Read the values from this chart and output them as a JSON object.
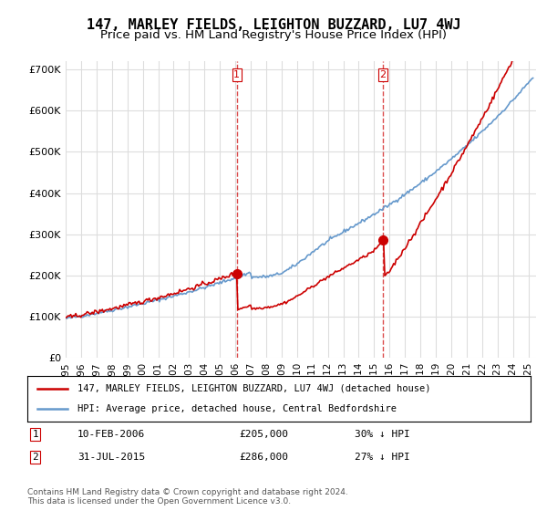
{
  "title": "147, MARLEY FIELDS, LEIGHTON BUZZARD, LU7 4WJ",
  "subtitle": "Price paid vs. HM Land Registry's House Price Index (HPI)",
  "ylabel_ticks": [
    "£0",
    "£100K",
    "£200K",
    "£300K",
    "£400K",
    "£500K",
    "£600K",
    "£700K"
  ],
  "ytick_values": [
    0,
    100000,
    200000,
    300000,
    400000,
    500000,
    600000,
    700000
  ],
  "ylim": [
    0,
    720000
  ],
  "xlim_start": 1995.0,
  "xlim_end": 2025.5,
  "sale1_x": 2006.1,
  "sale1_y": 205000,
  "sale1_label": "1",
  "sale1_date": "10-FEB-2006",
  "sale1_price": "£205,000",
  "sale1_hpi": "30% ↓ HPI",
  "sale2_x": 2015.58,
  "sale2_y": 286000,
  "sale2_label": "2",
  "sale2_date": "31-JUL-2015",
  "sale2_price": "£286,000",
  "sale2_hpi": "27% ↓ HPI",
  "line1_color": "#cc0000",
  "line2_color": "#6699cc",
  "dashed_color": "#cc0000",
  "legend1_label": "147, MARLEY FIELDS, LEIGHTON BUZZARD, LU7 4WJ (detached house)",
  "legend2_label": "HPI: Average price, detached house, Central Bedfordshire",
  "footnote": "Contains HM Land Registry data © Crown copyright and database right 2024.\nThis data is licensed under the Open Government Licence v3.0.",
  "background_color": "#ffffff",
  "plot_bg_color": "#ffffff",
  "grid_color": "#dddddd",
  "title_fontsize": 11,
  "subtitle_fontsize": 9.5
}
